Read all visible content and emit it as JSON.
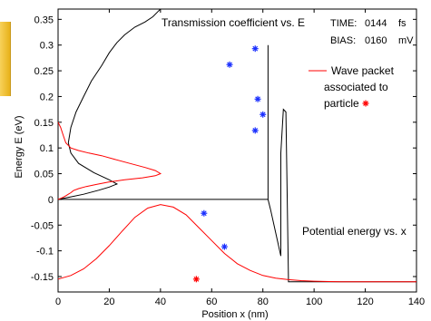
{
  "chart_data": {
    "type": "line",
    "xlabel": "Position x (nm)",
    "ylabel": "Energy E (eV)",
    "xlim": [
      0,
      140
    ],
    "ylim": [
      -0.18,
      0.37
    ],
    "xticks": [
      0,
      20,
      40,
      60,
      80,
      100,
      120,
      140
    ],
    "yticks": [
      -0.15,
      -0.1,
      -0.05,
      0,
      0.05,
      0.1,
      0.15,
      0.2,
      0.25,
      0.3,
      0.35
    ],
    "ytick_labels": [
      "-0.15",
      "-0.1",
      "-0.05",
      "0",
      "0.05",
      "0.1",
      "0.15",
      "0.2",
      "0.25",
      "0.3",
      "0.35"
    ],
    "grid": false,
    "annotations": {
      "transmission": "Transmission coefficient vs. E",
      "time_label": "TIME:",
      "time_value": "0144",
      "time_unit": "fs",
      "bias_label": "BIAS:",
      "bias_value": "0160",
      "bias_unit": "mV",
      "potential": "Potential energy vs. x",
      "legend_line1": "Wave packet",
      "legend_line2": "associated to",
      "legend_line3": "particle"
    },
    "potential_energy": {
      "color": "#000000",
      "x": [
        0,
        80,
        81,
        82,
        82,
        82,
        83,
        87,
        87,
        88,
        89,
        90,
        90,
        91,
        140
      ],
      "y": [
        0,
        0,
        0,
        0,
        0.3,
        0,
        -0.02,
        -0.11,
        0.09,
        0.175,
        0.17,
        -0.155,
        -0.16,
        -0.16,
        -0.16
      ]
    },
    "transmission_curve": {
      "color": "#000000",
      "x": [
        0,
        5,
        10,
        16,
        20,
        23,
        20,
        14,
        8,
        5,
        4,
        5,
        7,
        10,
        13,
        17,
        20,
        23,
        26,
        30,
        34,
        37,
        39,
        40
      ],
      "y": [
        0,
        0.005,
        0.01,
        0.018,
        0.024,
        0.03,
        0.038,
        0.052,
        0.07,
        0.09,
        0.11,
        0.14,
        0.17,
        0.2,
        0.23,
        0.26,
        0.285,
        0.305,
        0.32,
        0.335,
        0.345,
        0.355,
        0.365,
        0.37
      ]
    },
    "wave_packet_curve": {
      "color": "#ff0000",
      "x": [
        0,
        5,
        10,
        15,
        20,
        25,
        30,
        35,
        40,
        45,
        50,
        55,
        60,
        65,
        70,
        75,
        80,
        85,
        90,
        95,
        100,
        110,
        120,
        130,
        140
      ],
      "y": [
        -0.155,
        -0.148,
        -0.135,
        -0.115,
        -0.09,
        -0.062,
        -0.035,
        -0.017,
        -0.01,
        -0.015,
        -0.03,
        -0.055,
        -0.08,
        -0.105,
        -0.125,
        -0.138,
        -0.148,
        -0.153,
        -0.156,
        -0.158,
        -0.159,
        -0.16,
        -0.16,
        -0.16,
        -0.16
      ]
    },
    "transmission_red": {
      "color": "#ff0000",
      "x": [
        0,
        1,
        2,
        3,
        5,
        8,
        12,
        17,
        22,
        28,
        34,
        38,
        40,
        38,
        33,
        26,
        20,
        15,
        11,
        8,
        6,
        5,
        4,
        3,
        2,
        1,
        0
      ],
      "y": [
        0.15,
        0.14,
        0.125,
        0.11,
        0.1,
        0.095,
        0.09,
        0.085,
        0.078,
        0.07,
        0.062,
        0.056,
        0.05,
        0.046,
        0.042,
        0.038,
        0.034,
        0.029,
        0.025,
        0.021,
        0.017,
        0.013,
        0.01,
        0.007,
        0.004,
        0.002,
        0
      ]
    },
    "particle_markers": {
      "color": "#1a2fff",
      "points": [
        {
          "x": 67,
          "y": 0.262
        },
        {
          "x": 77,
          "y": 0.293
        },
        {
          "x": 78,
          "y": 0.195
        },
        {
          "x": 80,
          "y": 0.165
        },
        {
          "x": 77,
          "y": 0.134
        },
        {
          "x": 57,
          "y": -0.027
        },
        {
          "x": 65,
          "y": -0.092
        }
      ]
    },
    "particle_red_marker": {
      "color": "#ff0000",
      "x": 54,
      "y": -0.155
    },
    "legend_marker": {
      "color": "#ff0000"
    }
  }
}
